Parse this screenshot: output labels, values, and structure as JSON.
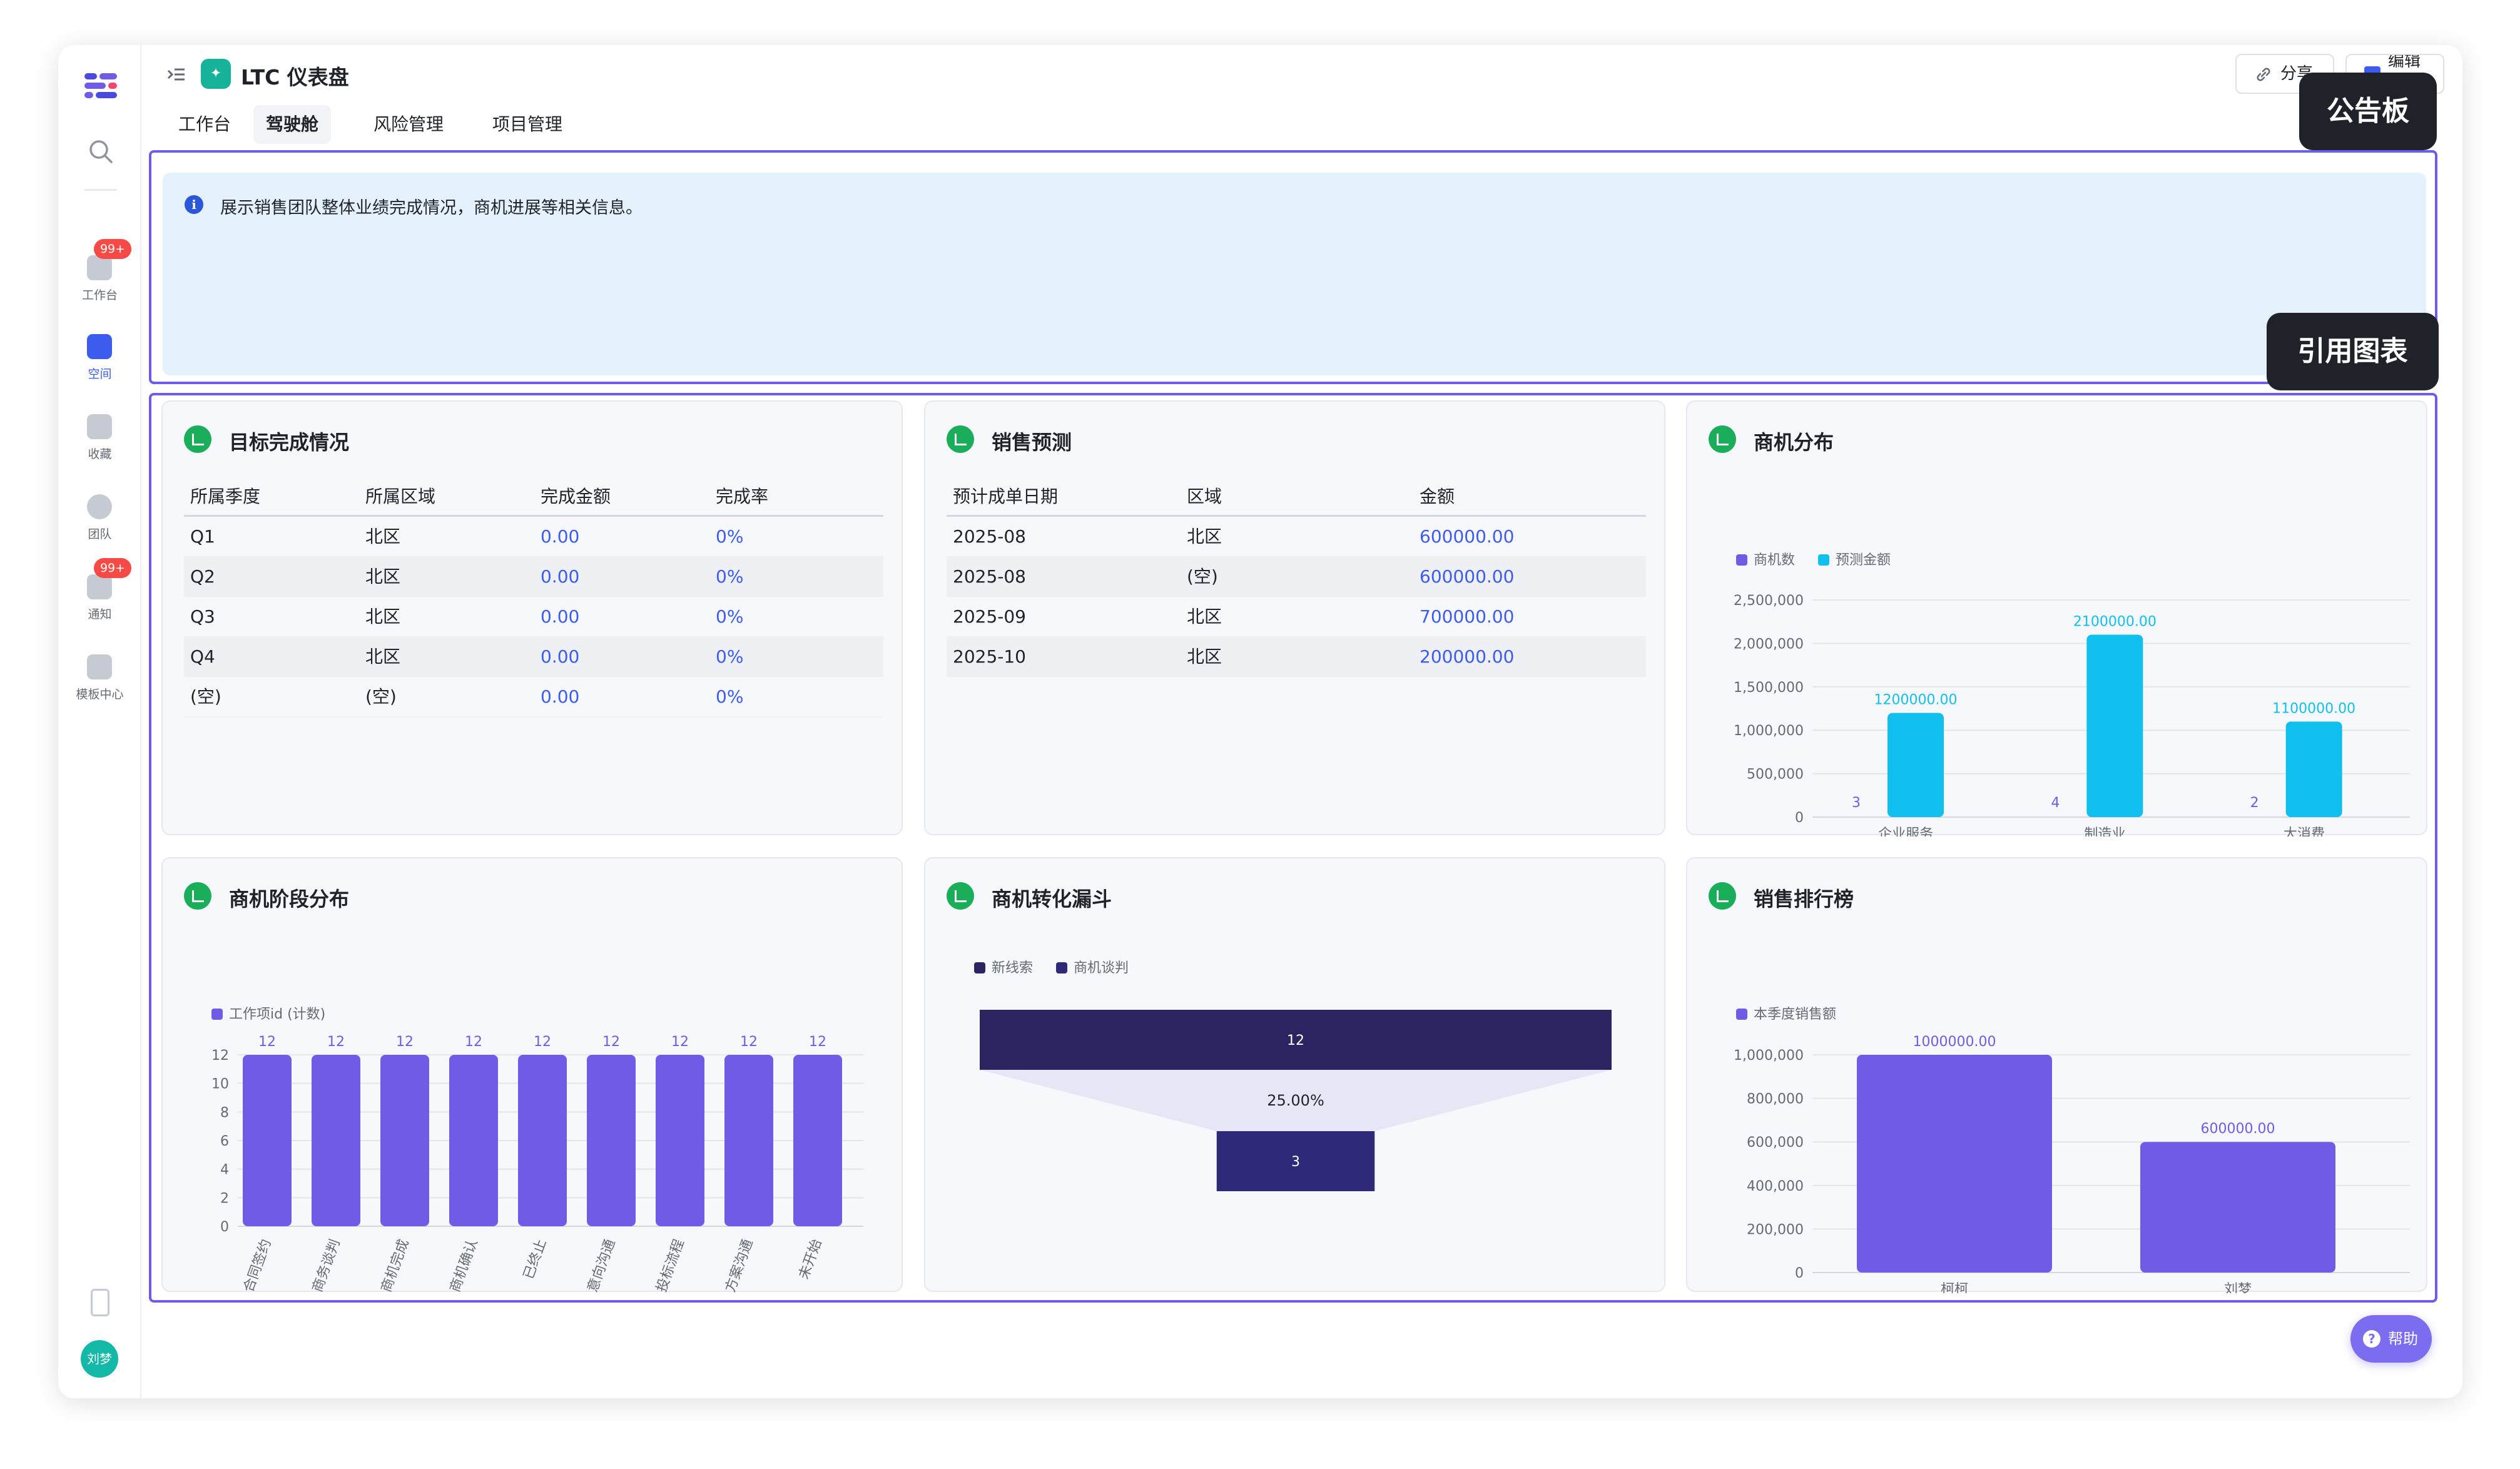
{
  "header": {
    "title": "LTC 仪表盘",
    "app_icon": "dashboard-icon",
    "share_label": "分享",
    "edit_label": "编辑"
  },
  "tabs": [
    {
      "label": "工作台",
      "active": false
    },
    {
      "label": "驾驶舱",
      "active": true
    },
    {
      "label": "风险管理",
      "active": false
    },
    {
      "label": "项目管理",
      "active": false
    }
  ],
  "sidebar": {
    "items": [
      {
        "label": "工作台",
        "badge": "99+",
        "icon": "home-icon",
        "active": false
      },
      {
        "label": "空间",
        "badge": "",
        "icon": "space-icon",
        "active": true
      },
      {
        "label": "收藏",
        "badge": "",
        "icon": "star-icon",
        "active": false
      },
      {
        "label": "团队",
        "badge": "",
        "icon": "team-icon",
        "active": false
      },
      {
        "label": "通知",
        "badge": "99+",
        "icon": "bell-icon",
        "active": false
      },
      {
        "label": "模板中心",
        "badge": "",
        "icon": "template-icon",
        "active": false
      }
    ],
    "avatar": "刘梦"
  },
  "tooltips": {
    "notice": "公告板",
    "ref_chart": "引用图表"
  },
  "notice": {
    "text": "展示销售团队整体业绩完成情况，商机进展等相关信息。"
  },
  "cards": {
    "goal": {
      "title": "目标完成情况",
      "columns": [
        "所属季度",
        "所属区域",
        "完成金额",
        "完成率"
      ],
      "rows": [
        [
          "Q1",
          "北区",
          "0.00",
          "0%"
        ],
        [
          "Q2",
          "北区",
          "0.00",
          "0%"
        ],
        [
          "Q3",
          "北区",
          "0.00",
          "0%"
        ],
        [
          "Q4",
          "北区",
          "0.00",
          "0%"
        ],
        [
          "(空)",
          "(空)",
          "0.00",
          "0%"
        ]
      ]
    },
    "forecast": {
      "title": "销售预测",
      "columns": [
        "预计成单日期",
        "区域",
        "金额"
      ],
      "rows": [
        [
          "2025-08",
          "北区",
          "600000.00"
        ],
        [
          "2025-08",
          "(空)",
          "600000.00"
        ],
        [
          "2025-09",
          "北区",
          "700000.00"
        ],
        [
          "2025-10",
          "北区",
          "200000.00"
        ]
      ]
    },
    "opp_dist": {
      "title": "商机分布"
    },
    "stage_dist": {
      "title": "商机阶段分布"
    },
    "funnel": {
      "title": "商机转化漏斗"
    },
    "ranking": {
      "title": "销售排行榜"
    }
  },
  "help_label": "帮助",
  "chart_data": [
    {
      "id": "opp_dist",
      "type": "bar",
      "categories": [
        "企业服务",
        "制造业",
        "大消费"
      ],
      "series": [
        {
          "name": "商机数",
          "values": [
            3,
            4,
            2
          ],
          "color": "#6e5ce6",
          "axis": "none"
        },
        {
          "name": "预测金额",
          "values": [
            1200000,
            2100000,
            1100000
          ],
          "color": "#10bfee",
          "labels": [
            "1200000.00",
            "2100000.00",
            "1100000.00"
          ]
        }
      ],
      "yticks": [
        "0",
        "500,000",
        "1,000,000",
        "1,500,000",
        "2,000,000",
        "2,500,000"
      ],
      "ylim": [
        0,
        2500000
      ],
      "legend": "top-left",
      "grid": true
    },
    {
      "id": "stage_dist",
      "type": "bar",
      "categories": [
        "合同签约",
        "商务谈判",
        "商机完成",
        "商机确认",
        "已终止",
        "意向沟通",
        "投标流程",
        "方案沟通",
        "未开始"
      ],
      "series": [
        {
          "name": "工作项id (计数)",
          "values": [
            12,
            12,
            12,
            12,
            12,
            12,
            12,
            12,
            12
          ],
          "color": "#6e5ce6"
        }
      ],
      "yticks": [
        "0",
        "2",
        "4",
        "6",
        "8",
        "10",
        "12"
      ],
      "ylim": [
        0,
        12
      ],
      "legend": "top-left",
      "grid": true
    },
    {
      "id": "funnel",
      "type": "funnel",
      "series": [
        {
          "name": "新线索",
          "value": 12,
          "color": "#2a2461"
        },
        {
          "name": "商机谈判",
          "value": 3,
          "color": "#2f2a78"
        }
      ],
      "conversion": "25.00%",
      "legend": "top-left"
    },
    {
      "id": "ranking",
      "type": "bar",
      "categories": [
        "柯柯",
        "刘梦"
      ],
      "series": [
        {
          "name": "本季度销售额",
          "values": [
            1000000,
            600000
          ],
          "color": "#6e5ce6",
          "labels": [
            "1000000.00",
            "600000.00"
          ]
        }
      ],
      "yticks": [
        "0",
        "200,000",
        "400,000",
        "600,000",
        "800,000",
        "1,000,000"
      ],
      "ylim": [
        0,
        1000000
      ],
      "legend": "top-left",
      "grid": true
    }
  ]
}
